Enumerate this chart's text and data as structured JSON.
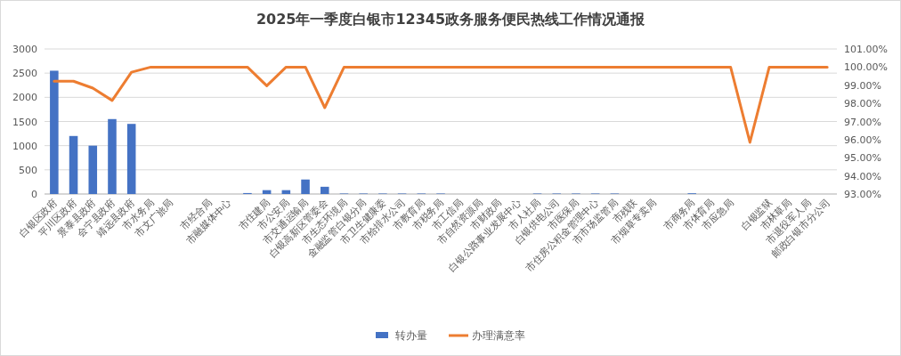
{
  "chart_data": {
    "type": "bar",
    "title": "2025年一季度白银市12345政务服务便民热线工作情况通报",
    "categories": [
      "白银区政府",
      "平川区政府",
      "景泰县政府",
      "会宁县政府",
      "靖远县政府",
      "市水务局",
      "市文广旅局",
      null,
      "市经合局",
      "市融媒体中心",
      null,
      "市住建局",
      "市公安局",
      "市交通运输局",
      "白银高新区管委会",
      "市生态环境局",
      "金融监管白银分局",
      "市卫生健康委",
      "市给排水公司",
      "市教育局",
      "市税务局",
      "市工信局",
      "市自然资源局",
      "市财政局",
      "白银公路事业发展中心",
      "市人社局",
      "白银供电公司",
      "市医保局",
      "市住房公积金管理中心",
      "市市场监管局",
      "市残联",
      "市烟草专卖局",
      null,
      "市商务局",
      "市体育局",
      "市应急局",
      null,
      "白银监狱",
      "市林草局",
      "市退役军人局",
      "邮政白银市分公司"
    ],
    "series": [
      {
        "name": "转办量",
        "color": "#4472c4",
        "values": [
          2550,
          1200,
          1000,
          1550,
          1450,
          0,
          0,
          0,
          0,
          0,
          20,
          80,
          80,
          300,
          150,
          10,
          10,
          10,
          10,
          10,
          10,
          0,
          0,
          0,
          0,
          10,
          10,
          10,
          10,
          10,
          0,
          0,
          0,
          15,
          0,
          0,
          0,
          0,
          0,
          0,
          0
        ]
      },
      {
        "name": "办理满意率",
        "type": "line",
        "axis": "y2",
        "color": "#ed7d31",
        "values": [
          99.22,
          99.22,
          98.84,
          98.16,
          99.72,
          100,
          100,
          100,
          100,
          100,
          100,
          98.97,
          100,
          100,
          97.76,
          100,
          100,
          100,
          100,
          100,
          100,
          100,
          100,
          100,
          100,
          100,
          100,
          100,
          100,
          100,
          100,
          100,
          100,
          100,
          100,
          100,
          95.85,
          100,
          100,
          100,
          100
        ]
      }
    ],
    "ylim": [
      0,
      3000
    ],
    "yticks": [
      0,
      500,
      1000,
      1500,
      2000,
      2500,
      3000
    ],
    "y2lim": [
      93,
      101
    ],
    "y2ticks": [
      {
        "value": 93,
        "label": "93.00%"
      },
      {
        "value": 94,
        "label": "94.00%"
      },
      {
        "value": 95,
        "label": "95.00%"
      },
      {
        "value": 96,
        "label": "96.00%"
      },
      {
        "value": 97,
        "label": "97.00%"
      },
      {
        "value": 98,
        "label": "98.00%"
      },
      {
        "value": 99,
        "label": "99.00%"
      },
      {
        "value": 100,
        "label": "100.00%"
      },
      {
        "value": 101,
        "label": "101.00%"
      }
    ],
    "grid": "y",
    "legend": "bottom"
  }
}
